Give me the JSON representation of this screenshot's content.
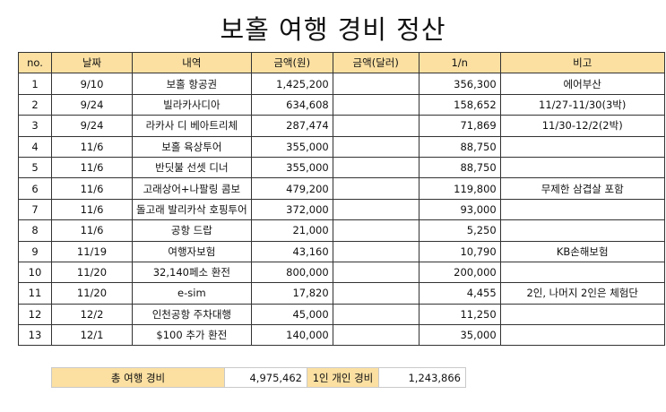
{
  "title": "보홀 여행 경비 정산",
  "columns": [
    "no.",
    "날짜",
    "내역",
    "금액(원)",
    "금액(달러)",
    "1/n",
    "비고"
  ],
  "rows": [
    {
      "no": "1",
      "date": "9/10",
      "desc": "보홀 항공권",
      "krw": "1,425,200",
      "usd": "",
      "share": "356,300",
      "note": "에어부산"
    },
    {
      "no": "2",
      "date": "9/24",
      "desc": "빌라카사디아",
      "krw": "634,608",
      "usd": "",
      "share": "158,652",
      "note": "11/27-11/30(3박)"
    },
    {
      "no": "3",
      "date": "9/24",
      "desc": "라카사 디 베아트리체",
      "krw": "287,474",
      "usd": "",
      "share": "71,869",
      "note": "11/30-12/2(2박)"
    },
    {
      "no": "4",
      "date": "11/6",
      "desc": "보홀 육상투어",
      "krw": "355,000",
      "usd": "",
      "share": "88,750",
      "note": ""
    },
    {
      "no": "5",
      "date": "11/6",
      "desc": "반딧불 선셋 디너",
      "krw": "355,000",
      "usd": "",
      "share": "88,750",
      "note": ""
    },
    {
      "no": "6",
      "date": "11/6",
      "desc": "고래상어+나팔링 콤보",
      "krw": "479,200",
      "usd": "",
      "share": "119,800",
      "note": "무제한 삼겹살 포함"
    },
    {
      "no": "7",
      "date": "11/6",
      "desc": "돌고래 발리카삭 호핑투어",
      "krw": "372,000",
      "usd": "",
      "share": "93,000",
      "note": ""
    },
    {
      "no": "8",
      "date": "11/6",
      "desc": "공항 드랍",
      "krw": "21,000",
      "usd": "",
      "share": "5,250",
      "note": ""
    },
    {
      "no": "9",
      "date": "11/19",
      "desc": "여행자보험",
      "krw": "43,160",
      "usd": "",
      "share": "10,790",
      "note": "KB손해보험"
    },
    {
      "no": "10",
      "date": "11/20",
      "desc": "32,140페소 환전",
      "krw": "800,000",
      "usd": "",
      "share": "200,000",
      "note": ""
    },
    {
      "no": "11",
      "date": "11/20",
      "desc": "e-sim",
      "krw": "17,820",
      "usd": "",
      "share": "4,455",
      "note": "2인, 나머지 2인은 체험단"
    },
    {
      "no": "12",
      "date": "12/2",
      "desc": "인천공항 주차대행",
      "krw": "45,000",
      "usd": "",
      "share": "11,250",
      "note": ""
    },
    {
      "no": "13",
      "date": "12/1",
      "desc": "$100 추가 환전",
      "krw": "140,000",
      "usd": "",
      "share": "35,000",
      "note": ""
    }
  ],
  "summary": {
    "total_label": "총 여행 경비",
    "total_value": "4,975,462",
    "per_person_label": "1인 개인 경비",
    "per_person_value": "1,243,866"
  }
}
